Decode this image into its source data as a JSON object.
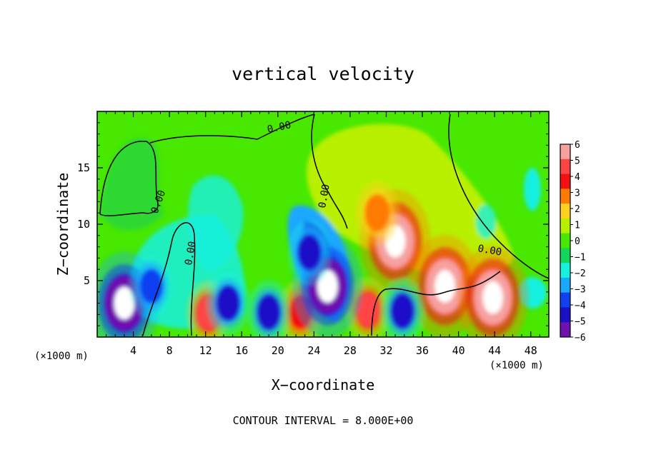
{
  "chart_data": {
    "type": "heatmap",
    "title": "vertical velocity",
    "xlabel": "X−coordinate",
    "ylabel": "Z−coordinate",
    "x_unit": "(×1000 m)",
    "y_unit": "(×1000 m)",
    "xlim": [
      0,
      50
    ],
    "ylim": [
      0,
      20
    ],
    "x_ticks": [
      "4",
      "8",
      "12",
      "16",
      "20",
      "24",
      "28",
      "32",
      "36",
      "40",
      "44",
      "48"
    ],
    "y_ticks": [
      "5",
      "10",
      "15"
    ],
    "footer": "CONTOUR INTERVAL = 8.000E+00",
    "contour_label": "0.00",
    "colorbar": {
      "labels": [
        "6",
        "5",
        "4",
        "3",
        "2",
        "1",
        "0",
        "−1",
        "−2",
        "−3",
        "−4",
        "−5",
        "−6"
      ],
      "range": [
        -6,
        6
      ],
      "colors": [
        "#f6a0a0",
        "#ff4444",
        "#f21010",
        "#ff7a00",
        "#ffd21f",
        "#b8f000",
        "#48e800",
        "#10d858",
        "#18f0e0",
        "#1aa8ff",
        "#1040f0",
        "#1a10c8",
        "#7010b0"
      ]
    },
    "features": [
      {
        "kind": "updraft-core",
        "x": 33,
        "z": 8.5,
        "level": 6
      },
      {
        "kind": "updraft-core",
        "x": 38.5,
        "z": 4.5,
        "level": 6
      },
      {
        "kind": "updraft-core",
        "x": 43.8,
        "z": 3.5,
        "level": 6
      },
      {
        "kind": "updraft",
        "x": 31,
        "z": 11,
        "level": 3.5
      },
      {
        "kind": "updraft",
        "x": 12.3,
        "z": 2.1,
        "level": 5
      },
      {
        "kind": "updraft",
        "x": 30,
        "z": 2.4,
        "level": 5
      },
      {
        "kind": "updraft",
        "x": 22.5,
        "z": 2.2,
        "level": 4
      },
      {
        "kind": "downdraft-core",
        "x": 25.5,
        "z": 4.5,
        "level": -6
      },
      {
        "kind": "downdraft-core",
        "x": 3,
        "z": 3,
        "level": -6
      },
      {
        "kind": "downdraft",
        "x": 23.5,
        "z": 7.5,
        "level": -4.5
      },
      {
        "kind": "downdraft",
        "x": 19,
        "z": 2.2,
        "level": -5
      },
      {
        "kind": "downdraft",
        "x": 33.8,
        "z": 2.3,
        "level": -5
      },
      {
        "kind": "downdraft",
        "x": 14.5,
        "z": 3,
        "level": -4.5
      },
      {
        "kind": "downdraft",
        "x": 6,
        "z": 4.5,
        "level": -4
      }
    ]
  }
}
